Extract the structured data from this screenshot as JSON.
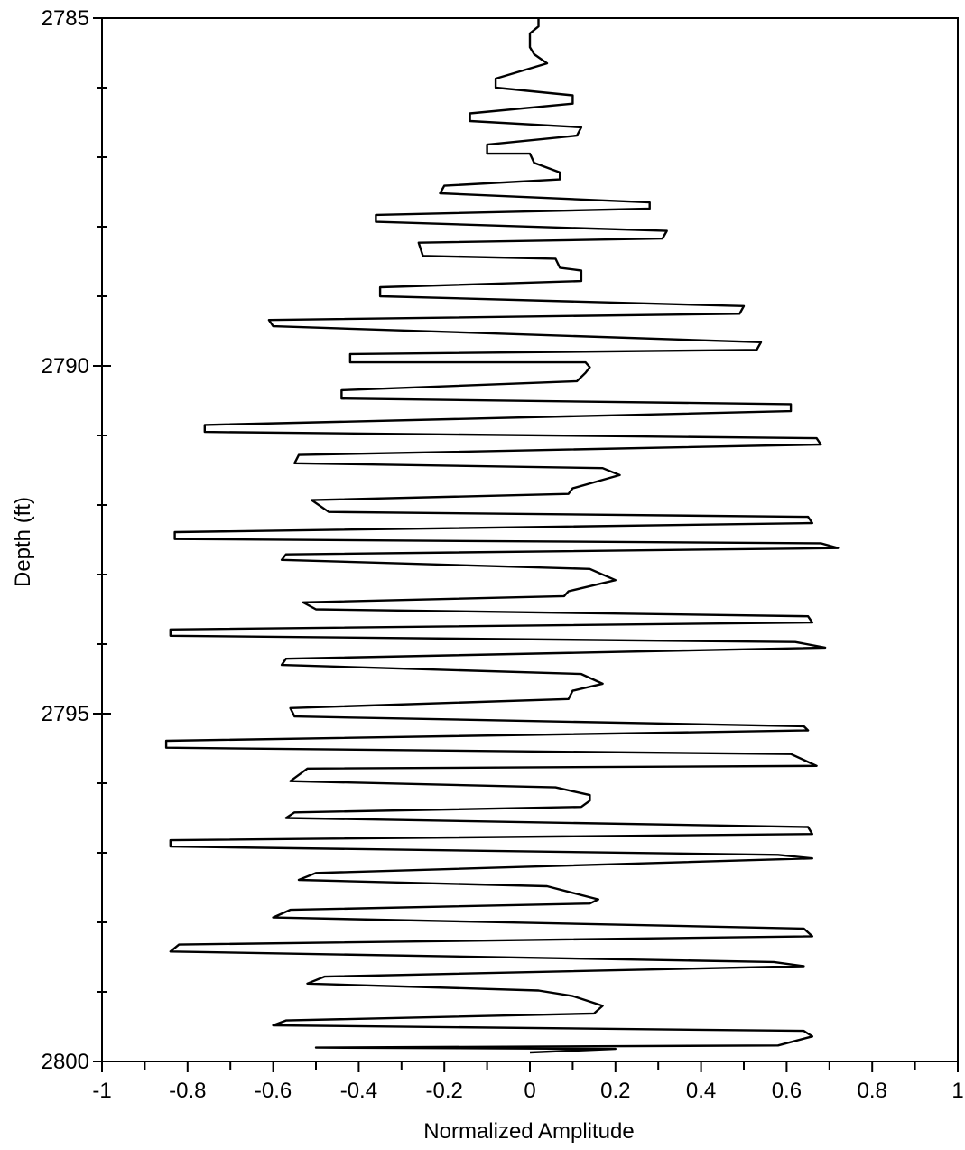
{
  "chart_data": {
    "type": "line",
    "title": "",
    "xlabel": "Normalized Amplitude",
    "ylabel": "Depth (ft)",
    "xlim": [
      -1,
      1
    ],
    "ylim": [
      2785,
      2800
    ],
    "y_inverted": true,
    "grid": false,
    "legend": "none",
    "line_color": "#000000",
    "x_ticks": [
      "-1",
      "-0.8",
      "-0.6",
      "-0.4",
      "-0.2",
      "0",
      "0.2",
      "0.4",
      "0.6",
      "0.8",
      "1"
    ],
    "y_ticks": [
      "2785",
      "2790",
      "2795",
      "2800"
    ],
    "series": [
      {
        "points": [
          {
            "x": 0.02,
            "y": 2785.0
          },
          {
            "x": 0.02,
            "y": 2785.12
          },
          {
            "x": 0.0,
            "y": 2785.22
          },
          {
            "x": 0.0,
            "y": 2785.42
          },
          {
            "x": 0.01,
            "y": 2785.52
          },
          {
            "x": 0.04,
            "y": 2785.65
          },
          {
            "x": -0.08,
            "y": 2785.87
          },
          {
            "x": -0.08,
            "y": 2786.0
          },
          {
            "x": 0.1,
            "y": 2786.11
          },
          {
            "x": 0.1,
            "y": 2786.23
          },
          {
            "x": -0.14,
            "y": 2786.37
          },
          {
            "x": -0.14,
            "y": 2786.48
          },
          {
            "x": 0.12,
            "y": 2786.57
          },
          {
            "x": 0.11,
            "y": 2786.69
          },
          {
            "x": -0.1,
            "y": 2786.82
          },
          {
            "x": -0.1,
            "y": 2786.95
          },
          {
            "x": 0.0,
            "y": 2786.95
          },
          {
            "x": 0.01,
            "y": 2787.08
          },
          {
            "x": 0.07,
            "y": 2787.22
          },
          {
            "x": 0.07,
            "y": 2787.32
          },
          {
            "x": -0.2,
            "y": 2787.41
          },
          {
            "x": -0.21,
            "y": 2787.52
          },
          {
            "x": 0.28,
            "y": 2787.65
          },
          {
            "x": 0.28,
            "y": 2787.74
          },
          {
            "x": -0.36,
            "y": 2787.83
          },
          {
            "x": -0.36,
            "y": 2787.93
          },
          {
            "x": 0.32,
            "y": 2788.06
          },
          {
            "x": 0.31,
            "y": 2788.17
          },
          {
            "x": -0.26,
            "y": 2788.23
          },
          {
            "x": -0.25,
            "y": 2788.42
          },
          {
            "x": 0.06,
            "y": 2788.46
          },
          {
            "x": 0.07,
            "y": 2788.59
          },
          {
            "x": 0.12,
            "y": 2788.63
          },
          {
            "x": 0.12,
            "y": 2788.78
          },
          {
            "x": -0.35,
            "y": 2788.87
          },
          {
            "x": -0.35,
            "y": 2789.0
          },
          {
            "x": 0.5,
            "y": 2789.14
          },
          {
            "x": 0.49,
            "y": 2789.25
          },
          {
            "x": -0.61,
            "y": 2789.34
          },
          {
            "x": -0.6,
            "y": 2789.43
          },
          {
            "x": 0.54,
            "y": 2789.66
          },
          {
            "x": 0.53,
            "y": 2789.77
          },
          {
            "x": -0.42,
            "y": 2789.83
          },
          {
            "x": -0.42,
            "y": 2789.95
          },
          {
            "x": 0.13,
            "y": 2789.95
          },
          {
            "x": 0.14,
            "y": 2790.02
          },
          {
            "x": 0.13,
            "y": 2790.1
          },
          {
            "x": 0.11,
            "y": 2790.22
          },
          {
            "x": -0.44,
            "y": 2790.35
          },
          {
            "x": -0.44,
            "y": 2790.47
          },
          {
            "x": 0.61,
            "y": 2790.55
          },
          {
            "x": 0.61,
            "y": 2790.65
          },
          {
            "x": -0.76,
            "y": 2790.85
          },
          {
            "x": -0.76,
            "y": 2790.95
          },
          {
            "x": 0.67,
            "y": 2791.04
          },
          {
            "x": 0.68,
            "y": 2791.13
          },
          {
            "x": -0.54,
            "y": 2791.28
          },
          {
            "x": -0.55,
            "y": 2791.4
          },
          {
            "x": 0.17,
            "y": 2791.47
          },
          {
            "x": 0.21,
            "y": 2791.57
          },
          {
            "x": 0.1,
            "y": 2791.76
          },
          {
            "x": 0.09,
            "y": 2791.84
          },
          {
            "x": -0.51,
            "y": 2791.93
          },
          {
            "x": -0.47,
            "y": 2792.1
          },
          {
            "x": 0.65,
            "y": 2792.17
          },
          {
            "x": 0.66,
            "y": 2792.26
          },
          {
            "x": -0.83,
            "y": 2792.39
          },
          {
            "x": -0.83,
            "y": 2792.49
          },
          {
            "x": 0.68,
            "y": 2792.55
          },
          {
            "x": 0.72,
            "y": 2792.62
          },
          {
            "x": -0.57,
            "y": 2792.71
          },
          {
            "x": -0.58,
            "y": 2792.79
          },
          {
            "x": 0.14,
            "y": 2792.92
          },
          {
            "x": 0.2,
            "y": 2793.08
          },
          {
            "x": 0.09,
            "y": 2793.24
          },
          {
            "x": 0.08,
            "y": 2793.31
          },
          {
            "x": -0.53,
            "y": 2793.4
          },
          {
            "x": -0.5,
            "y": 2793.5
          },
          {
            "x": 0.65,
            "y": 2793.6
          },
          {
            "x": 0.66,
            "y": 2793.69
          },
          {
            "x": -0.84,
            "y": 2793.79
          },
          {
            "x": -0.84,
            "y": 2793.88
          },
          {
            "x": 0.62,
            "y": 2793.97
          },
          {
            "x": 0.69,
            "y": 2794.05
          },
          {
            "x": -0.57,
            "y": 2794.21
          },
          {
            "x": -0.58,
            "y": 2794.3
          },
          {
            "x": 0.12,
            "y": 2794.43
          },
          {
            "x": 0.17,
            "y": 2794.57
          },
          {
            "x": 0.1,
            "y": 2794.67
          },
          {
            "x": 0.09,
            "y": 2794.79
          },
          {
            "x": -0.56,
            "y": 2794.92
          },
          {
            "x": -0.55,
            "y": 2795.04
          },
          {
            "x": 0.64,
            "y": 2795.18
          },
          {
            "x": 0.65,
            "y": 2795.24
          },
          {
            "x": -0.85,
            "y": 2795.39
          },
          {
            "x": -0.85,
            "y": 2795.49
          },
          {
            "x": 0.61,
            "y": 2795.58
          },
          {
            "x": 0.67,
            "y": 2795.75
          },
          {
            "x": -0.52,
            "y": 2795.79
          },
          {
            "x": -0.56,
            "y": 2795.97
          },
          {
            "x": 0.06,
            "y": 2796.06
          },
          {
            "x": 0.14,
            "y": 2796.17
          },
          {
            "x": 0.14,
            "y": 2796.25
          },
          {
            "x": 0.12,
            "y": 2796.34
          },
          {
            "x": -0.55,
            "y": 2796.42
          },
          {
            "x": -0.57,
            "y": 2796.5
          },
          {
            "x": 0.65,
            "y": 2796.63
          },
          {
            "x": 0.66,
            "y": 2796.73
          },
          {
            "x": -0.84,
            "y": 2796.82
          },
          {
            "x": -0.84,
            "y": 2796.91
          },
          {
            "x": 0.58,
            "y": 2797.03
          },
          {
            "x": 0.66,
            "y": 2797.08
          },
          {
            "x": -0.5,
            "y": 2797.29
          },
          {
            "x": -0.54,
            "y": 2797.39
          },
          {
            "x": 0.04,
            "y": 2797.48
          },
          {
            "x": 0.16,
            "y": 2797.67
          },
          {
            "x": 0.14,
            "y": 2797.73
          },
          {
            "x": -0.56,
            "y": 2797.82
          },
          {
            "x": -0.6,
            "y": 2797.93
          },
          {
            "x": 0.64,
            "y": 2798.09
          },
          {
            "x": 0.66,
            "y": 2798.2
          },
          {
            "x": -0.82,
            "y": 2798.32
          },
          {
            "x": -0.84,
            "y": 2798.42
          },
          {
            "x": 0.57,
            "y": 2798.57
          },
          {
            "x": 0.64,
            "y": 2798.63
          },
          {
            "x": -0.48,
            "y": 2798.78
          },
          {
            "x": -0.52,
            "y": 2798.88
          },
          {
            "x": 0.02,
            "y": 2798.98
          },
          {
            "x": 0.1,
            "y": 2799.06
          },
          {
            "x": 0.17,
            "y": 2799.2
          },
          {
            "x": 0.15,
            "y": 2799.31
          },
          {
            "x": -0.57,
            "y": 2799.41
          },
          {
            "x": -0.6,
            "y": 2799.48
          },
          {
            "x": 0.64,
            "y": 2799.56
          },
          {
            "x": 0.66,
            "y": 2799.64
          },
          {
            "x": 0.58,
            "y": 2799.77
          },
          {
            "x": -0.5,
            "y": 2799.8
          },
          {
            "x": 0.2,
            "y": 2799.82
          },
          {
            "x": 0.0,
            "y": 2799.87
          }
        ]
      }
    ]
  }
}
